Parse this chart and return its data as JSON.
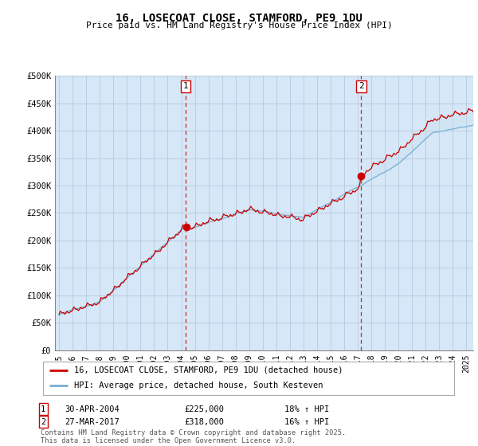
{
  "title": "16, LOSECOAT CLOSE, STAMFORD, PE9 1DU",
  "subtitle": "Price paid vs. HM Land Registry's House Price Index (HPI)",
  "plot_bg_color": "#d6e8f7",
  "red_line_color": "#cc0000",
  "blue_line_color": "#7aafd4",
  "fill_color": "#c5ddf0",
  "ylim": [
    0,
    500000
  ],
  "yticks": [
    0,
    50000,
    100000,
    150000,
    200000,
    250000,
    300000,
    350000,
    400000,
    450000,
    500000
  ],
  "ytick_labels": [
    "£0",
    "£50K",
    "£100K",
    "£150K",
    "£200K",
    "£250K",
    "£300K",
    "£350K",
    "£400K",
    "£450K",
    "£500K"
  ],
  "marker1_date_x": 2004.33,
  "marker1_label": "1",
  "marker1_date_str": "30-APR-2004",
  "marker1_price": "£225,000",
  "marker1_hpi": "18% ↑ HPI",
  "marker1_y": 225000,
  "marker2_date_x": 2017.25,
  "marker2_label": "2",
  "marker2_date_str": "27-MAR-2017",
  "marker2_price": "£318,000",
  "marker2_hpi": "16% ↑ HPI",
  "marker2_y": 318000,
  "legend_line1": "16, LOSECOAT CLOSE, STAMFORD, PE9 1DU (detached house)",
  "legend_line2": "HPI: Average price, detached house, South Kesteven",
  "footer": "Contains HM Land Registry data © Crown copyright and database right 2025.\nThis data is licensed under the Open Government Licence v3.0.",
  "xticks": [
    1995,
    1996,
    1997,
    1998,
    1999,
    2000,
    2001,
    2002,
    2003,
    2004,
    2005,
    2006,
    2007,
    2008,
    2009,
    2010,
    2011,
    2012,
    2013,
    2014,
    2015,
    2016,
    2017,
    2018,
    2019,
    2020,
    2021,
    2022,
    2023,
    2024,
    2025
  ],
  "xlim": [
    1994.7,
    2025.5
  ]
}
